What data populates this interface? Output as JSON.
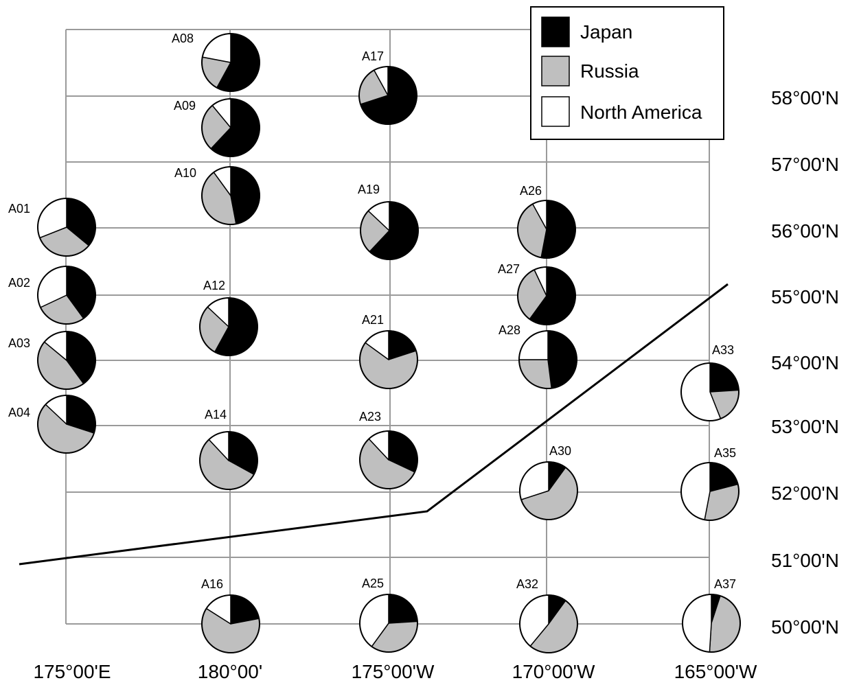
{
  "legend": {
    "items": [
      {
        "label": "Japan",
        "color": "#000000"
      },
      {
        "label": "Russia",
        "color": "#bfbfbf"
      },
      {
        "label": "North America",
        "color": "#ffffff"
      }
    ]
  },
  "axes": {
    "lon_labels": [
      "175°00'E",
      "180°00'",
      "175°00'W",
      "170°00'W",
      "165°00'W"
    ],
    "lat_labels": [
      "58°00'N",
      "57°00'N",
      "56°00'N",
      "55°00'N",
      "54°00'N",
      "53°00'N",
      "52°00'N",
      "51°00'N",
      "50°00'N"
    ]
  },
  "colors": {
    "grid": "#9a9a9a",
    "japan": "#000000",
    "russia": "#bfbfbf",
    "north_america": "#ffffff",
    "outline": "#000000"
  },
  "stations": [
    {
      "id": "A01",
      "japan": 0.36,
      "russia": 0.33,
      "north_america": 0.31
    },
    {
      "id": "A02",
      "japan": 0.4,
      "russia": 0.28,
      "north_america": 0.32
    },
    {
      "id": "A03",
      "japan": 0.4,
      "russia": 0.46,
      "north_america": 0.14
    },
    {
      "id": "A04",
      "japan": 0.3,
      "russia": 0.57,
      "north_america": 0.13
    },
    {
      "id": "A08",
      "japan": 0.58,
      "russia": 0.2,
      "north_america": 0.22
    },
    {
      "id": "A09",
      "japan": 0.62,
      "russia": 0.27,
      "north_america": 0.11
    },
    {
      "id": "A10",
      "japan": 0.47,
      "russia": 0.43,
      "north_america": 0.1
    },
    {
      "id": "A12",
      "japan": 0.58,
      "russia": 0.29,
      "north_america": 0.13
    },
    {
      "id": "A14",
      "japan": 0.33,
      "russia": 0.55,
      "north_america": 0.12
    },
    {
      "id": "A16",
      "japan": 0.22,
      "russia": 0.62,
      "north_america": 0.16
    },
    {
      "id": "A17",
      "japan": 0.7,
      "russia": 0.22,
      "north_america": 0.08
    },
    {
      "id": "A19",
      "japan": 0.62,
      "russia": 0.25,
      "north_america": 0.13
    },
    {
      "id": "A21",
      "japan": 0.2,
      "russia": 0.65,
      "north_america": 0.15
    },
    {
      "id": "A23",
      "japan": 0.32,
      "russia": 0.56,
      "north_america": 0.12
    },
    {
      "id": "A25",
      "japan": 0.24,
      "russia": 0.36,
      "north_america": 0.4
    },
    {
      "id": "A26",
      "japan": 0.53,
      "russia": 0.39,
      "north_america": 0.08
    },
    {
      "id": "A27",
      "japan": 0.6,
      "russia": 0.33,
      "north_america": 0.07
    },
    {
      "id": "A28",
      "japan": 0.48,
      "russia": 0.27,
      "north_america": 0.25
    },
    {
      "id": "A30",
      "japan": 0.1,
      "russia": 0.6,
      "north_america": 0.3
    },
    {
      "id": "A32",
      "japan": 0.1,
      "russia": 0.51,
      "north_america": 0.39
    },
    {
      "id": "A33",
      "japan": 0.24,
      "russia": 0.2,
      "north_america": 0.56
    },
    {
      "id": "A35",
      "japan": 0.21,
      "russia": 0.32,
      "north_america": 0.47
    },
    {
      "id": "A37",
      "japan": 0.05,
      "russia": 0.46,
      "north_america": 0.49
    }
  ]
}
